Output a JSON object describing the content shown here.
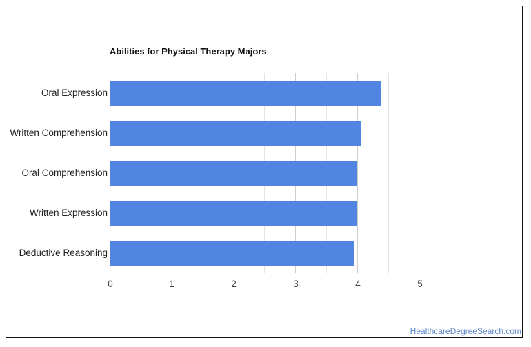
{
  "chart_data": {
    "type": "bar",
    "orientation": "horizontal",
    "title": "Abilities for Physical Therapy Majors",
    "categories": [
      "Oral Expression",
      "Written Comprehension",
      "Oral Comprehension",
      "Written Expression",
      "Deductive Reasoning"
    ],
    "values": [
      4.38,
      4.06,
      4.0,
      4.0,
      3.94
    ],
    "xlabel": "",
    "ylabel": "",
    "xlim": [
      0,
      5
    ],
    "x_ticks": [
      "0",
      "1",
      "2",
      "3",
      "4",
      "5"
    ],
    "grid": true,
    "legend": "none",
    "bar_color": "#5285e2"
  },
  "source": "HealthcareDegreeSearch.com"
}
